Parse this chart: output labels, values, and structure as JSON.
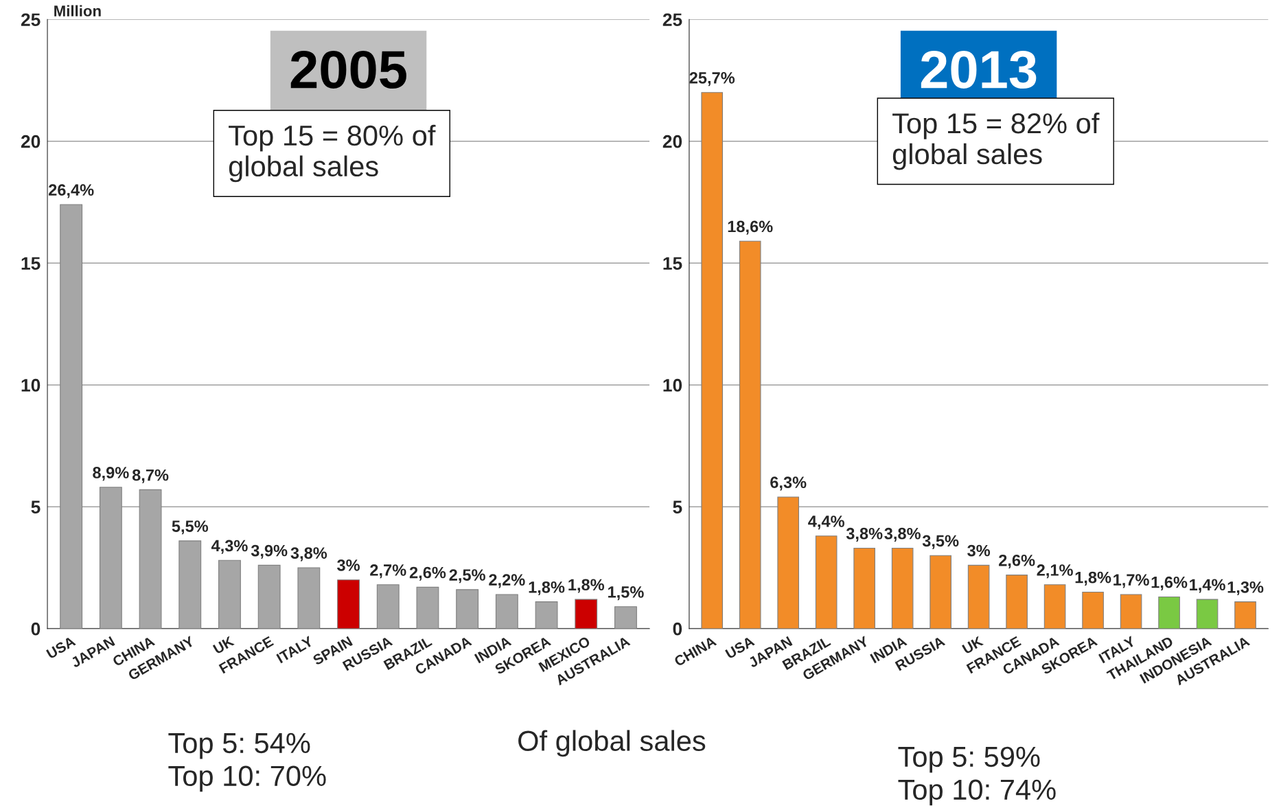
{
  "chart_data": [
    {
      "type": "bar",
      "title": "2005",
      "ylabel": "Million",
      "categories": [
        "USA",
        "JAPAN",
        "CHINA",
        "GERMANY",
        "UK",
        "FRANCE",
        "ITALY",
        "SPAIN",
        "RUSSIA",
        "BRAZIL",
        "CANADA",
        "INDIA",
        "SKOREA",
        "MEXICO",
        "AUSTRALIA"
      ],
      "values": [
        17.4,
        5.8,
        5.7,
        3.6,
        2.8,
        2.6,
        2.5,
        2.0,
        1.8,
        1.7,
        1.6,
        1.4,
        1.1,
        1.2,
        0.9
      ],
      "colors": [
        "#a6a6a6",
        "#a6a6a6",
        "#a6a6a6",
        "#a6a6a6",
        "#a6a6a6",
        "#a6a6a6",
        "#a6a6a6",
        "#cc0000",
        "#a6a6a6",
        "#a6a6a6",
        "#a6a6a6",
        "#a6a6a6",
        "#a6a6a6",
        "#cc0000",
        "#a6a6a6"
      ],
      "ylim": [
        0,
        25
      ],
      "yticks": [
        0,
        5,
        10,
        15,
        20,
        25
      ],
      "grid": "y",
      "legend": false,
      "annotations": [
        "Top 15 = 80% of\nglobal sales",
        "Top 5: 54%\nTop 10: 70%",
        "Of global sales",
        {
          "text": "26,4%",
          "x": "USA",
          "y": 17.4
        },
        {
          "text": "8,9%",
          "x": "JAPAN",
          "y": 5.8
        },
        {
          "text": "8,7%",
          "x": "CHINA",
          "y": 5.7
        },
        {
          "text": "5,5%",
          "x": "GERMANY",
          "y": 3.6
        },
        {
          "text": "4,3%",
          "x": "UK",
          "y": 2.8
        },
        {
          "text": "3,9%",
          "x": "FRANCE",
          "y": 2.6
        },
        {
          "text": "3,8%",
          "x": "ITALY",
          "y": 2.5
        },
        {
          "text": "3%",
          "x": "SPAIN",
          "y": 2.0
        },
        {
          "text": "2,7%",
          "x": "RUSSIA",
          "y": 1.8
        },
        {
          "text": "2,6%",
          "x": "BRAZIL",
          "y": 1.7
        },
        {
          "text": "2,5%",
          "x": "CANADA",
          "y": 1.6
        },
        {
          "text": "2,2%",
          "x": "INDIA",
          "y": 1.4
        },
        {
          "text": "1,8%",
          "x": "SKOREA",
          "y": 1.1
        },
        {
          "text": "1,8%",
          "x": "MEXICO",
          "y": 1.2
        },
        {
          "text": "1,5%",
          "x": "AUSTRALIA",
          "y": 0.9
        }
      ]
    },
    {
      "type": "bar",
      "title": "2013",
      "categories": [
        "CHINA",
        "USA",
        "JAPAN",
        "BRAZIL",
        "GERMANY",
        "INDIA",
        "RUSSIA",
        "UK",
        "FRANCE",
        "CANADA",
        "SKOREA",
        "ITALY",
        "THAILAND",
        "INDONESIA",
        "AUSTRALIA"
      ],
      "values": [
        22.0,
        15.9,
        5.4,
        3.8,
        3.3,
        3.3,
        3.0,
        2.6,
        2.2,
        1.8,
        1.5,
        1.4,
        1.3,
        1.2,
        1.1
      ],
      "colors": [
        "#f28c28",
        "#f28c28",
        "#f28c28",
        "#f28c28",
        "#f28c28",
        "#f28c28",
        "#f28c28",
        "#f28c28",
        "#f28c28",
        "#f28c28",
        "#f28c28",
        "#f28c28",
        "#7ac943",
        "#7ac943",
        "#f28c28"
      ],
      "ylim": [
        0,
        25
      ],
      "yticks": [
        0,
        5,
        10,
        15,
        20,
        25
      ],
      "grid": "y",
      "legend": false,
      "annotations": [
        "Top 15 = 82% of\nglobal sales",
        "Top 5: 59%\nTop 10: 74%",
        {
          "text": "25,7%",
          "x": "CHINA",
          "y": 22.0
        },
        {
          "text": "18,6%",
          "x": "USA",
          "y": 15.9
        },
        {
          "text": "6,3%",
          "x": "JAPAN",
          "y": 5.4
        },
        {
          "text": "4,4%",
          "x": "BRAZIL",
          "y": 3.8
        },
        {
          "text": "3,8%",
          "x": "GERMANY",
          "y": 3.3
        },
        {
          "text": "3,8%",
          "x": "INDIA",
          "y": 3.3
        },
        {
          "text": "3,5%",
          "x": "RUSSIA",
          "y": 3.0
        },
        {
          "text": "3%",
          "x": "UK",
          "y": 2.6
        },
        {
          "text": "2,6%",
          "x": "FRANCE",
          "y": 2.2
        },
        {
          "text": "2,1%",
          "x": "CANADA",
          "y": 1.8
        },
        {
          "text": "1,8%",
          "x": "SKOREA",
          "y": 1.5
        },
        {
          "text": "1,7%",
          "x": "ITALY",
          "y": 1.4
        },
        {
          "text": "1,6%",
          "x": "THAILAND",
          "y": 1.3
        },
        {
          "text": "1,4%",
          "x": "INDONESIA",
          "y": 1.2
        },
        {
          "text": "1,3%",
          "x": "AUSTRALIA",
          "y": 1.1
        }
      ]
    }
  ]
}
